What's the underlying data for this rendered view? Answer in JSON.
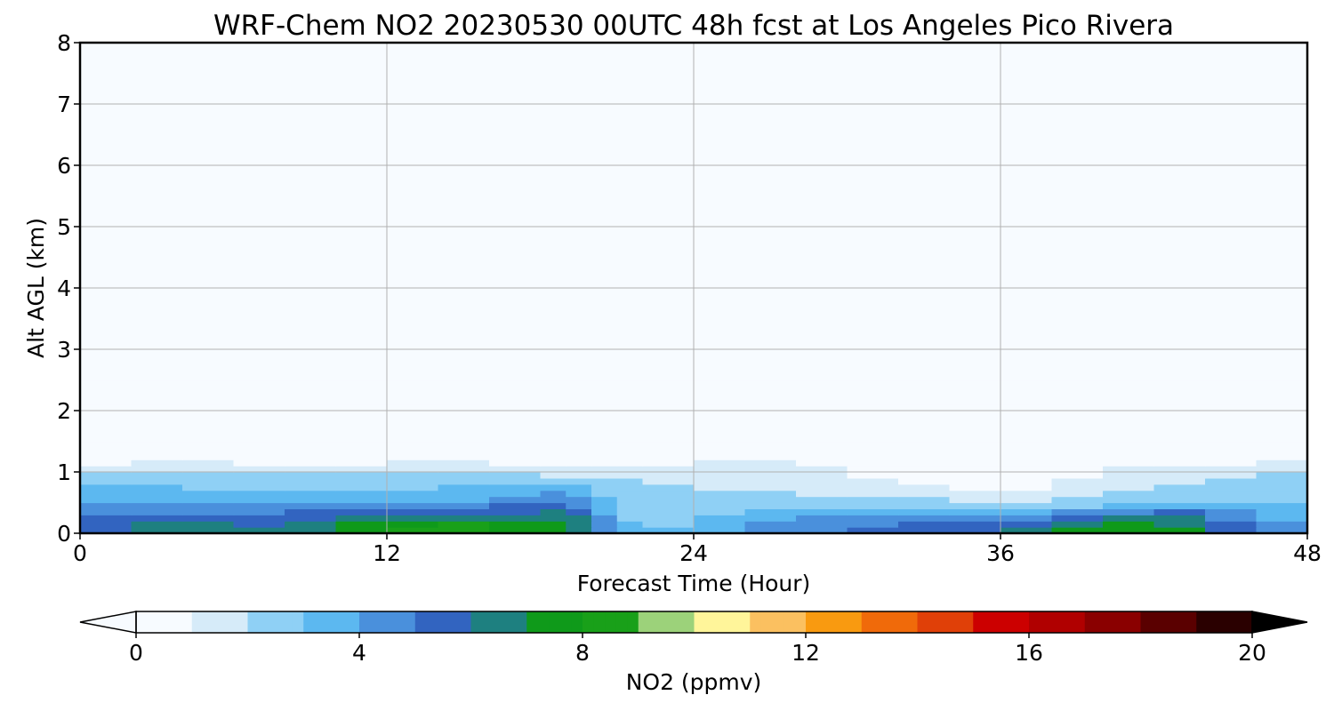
{
  "chart_data": {
    "type": "heatmap",
    "subtype": "filled-contour time-height",
    "title": "WRF-Chem NO2  20230530 00UTC 48h fcst at Los Angeles Pico Rivera",
    "xlabel": "Forecast Time (Hour)",
    "ylabel": "Alt AGL (km)",
    "xlim": [
      0,
      48
    ],
    "ylim": [
      0,
      8
    ],
    "xticks": [
      0,
      12,
      24,
      36,
      48
    ],
    "yticks": [
      0,
      1,
      2,
      3,
      4,
      5,
      6,
      7,
      8
    ],
    "grid": true,
    "colorbar": {
      "label": "NO2  (ppmv)",
      "min": 0,
      "max": 20,
      "ticks": [
        0,
        4,
        8,
        12,
        16,
        20
      ],
      "extend": "both",
      "orientation": "horizontal",
      "placement": "bottom",
      "colors": [
        {
          "v": 0,
          "c": "#f7fbff"
        },
        {
          "v": 1,
          "c": "#d6ebf9"
        },
        {
          "v": 2,
          "c": "#8fd0f5"
        },
        {
          "v": 3,
          "c": "#5cb8f0"
        },
        {
          "v": 4,
          "c": "#4a90dc"
        },
        {
          "v": 5,
          "c": "#3264c0"
        },
        {
          "v": 6,
          "c": "#1e8080"
        },
        {
          "v": 7,
          "c": "#0f9a1a"
        },
        {
          "v": 8,
          "c": "#19a019"
        },
        {
          "v": 9,
          "c": "#9cd27a"
        },
        {
          "v": 10,
          "c": "#fff59a"
        },
        {
          "v": 11,
          "c": "#fbc060"
        },
        {
          "v": 12,
          "c": "#f99a10"
        },
        {
          "v": 13,
          "c": "#f06a0a"
        },
        {
          "v": 14,
          "c": "#e04008"
        },
        {
          "v": 15,
          "c": "#cc0000"
        },
        {
          "v": 16,
          "c": "#b00000"
        },
        {
          "v": 17,
          "c": "#8a0000"
        },
        {
          "v": 18,
          "c": "#5a0000"
        },
        {
          "v": 19,
          "c": "#2a0000"
        },
        {
          "v": 20,
          "c": "#000000"
        }
      ]
    },
    "time_hours": [
      0,
      2,
      4,
      6,
      8,
      10,
      12,
      14,
      16,
      18,
      19,
      20,
      21,
      22,
      24,
      26,
      28,
      30,
      32,
      34,
      36,
      38,
      40,
      42,
      44,
      46,
      48
    ],
    "altitude_km": [
      0,
      0.1,
      0.2,
      0.3,
      0.4,
      0.5,
      0.6,
      0.7,
      0.8,
      0.9,
      1.0,
      1.1,
      1.2,
      1.3,
      1.5,
      1.7,
      1.9,
      2.1,
      2.3,
      2.5,
      8.0
    ],
    "no2_ppmv": [
      [
        5.2,
        6.6,
        7.2,
        6.8,
        6.4,
        7.3,
        7.8,
        9.8,
        8.3,
        7.7,
        7.4,
        6.0,
        3.5,
        3.0,
        3.1,
        4.1,
        4.7,
        5.1,
        5.5,
        5.9,
        6.3,
        6.9,
        7.4,
        7.7,
        7.0,
        4.6,
        3.9
      ],
      [
        5.0,
        6.3,
        7.0,
        6.6,
        6.2,
        7.1,
        7.6,
        8.9,
        8.0,
        7.5,
        7.2,
        5.8,
        3.4,
        2.9,
        3.0,
        4.0,
        4.6,
        5.0,
        5.3,
        5.6,
        6.0,
        6.6,
        7.2,
        7.6,
        6.8,
        4.5,
        3.8
      ],
      [
        4.8,
        6.0,
        6.3,
        5.5,
        5.4,
        6.4,
        6.9,
        7.8,
        7.5,
        7.2,
        7.0,
        5.5,
        3.2,
        2.8,
        2.9,
        3.8,
        4.4,
        4.7,
        4.9,
        4.8,
        4.7,
        5.2,
        6.2,
        7.0,
        6.2,
        4.3,
        3.7
      ],
      [
        4.5,
        5.5,
        5.4,
        4.9,
        5.3,
        5.4,
        5.6,
        5.8,
        6.0,
        6.5,
        6.4,
        5.1,
        3.0,
        2.7,
        2.8,
        3.5,
        4.0,
        4.2,
        4.2,
        4.2,
        4.1,
        4.4,
        5.2,
        6.0,
        5.3,
        4.0,
        3.5
      ],
      [
        4.2,
        4.8,
        4.2,
        4.5,
        4.8,
        4.9,
        5.0,
        5.1,
        5.2,
        5.8,
        5.7,
        4.6,
        2.8,
        2.5,
        2.6,
        3.0,
        3.2,
        3.1,
        3.0,
        2.8,
        2.7,
        3.0,
        3.8,
        4.6,
        4.3,
        3.6,
        3.2
      ],
      [
        3.8,
        4.2,
        3.8,
        3.7,
        3.6,
        3.6,
        3.7,
        3.9,
        4.2,
        5.0,
        5.1,
        4.0,
        2.6,
        2.4,
        2.4,
        2.6,
        2.6,
        2.5,
        2.3,
        2.1,
        2.0,
        2.2,
        2.8,
        3.2,
        3.2,
        3.0,
        2.9
      ],
      [
        3.5,
        3.6,
        3.4,
        3.3,
        3.2,
        3.2,
        3.3,
        3.5,
        3.6,
        4.3,
        4.4,
        3.4,
        2.4,
        2.2,
        2.2,
        2.3,
        2.2,
        2.0,
        1.9,
        1.7,
        1.6,
        1.8,
        2.3,
        2.6,
        2.7,
        2.7,
        2.7
      ],
      [
        3.2,
        3.2,
        3.1,
        3.0,
        2.9,
        2.9,
        3.0,
        3.2,
        3.1,
        3.6,
        3.7,
        3.0,
        2.3,
        2.1,
        2.0,
        2.0,
        1.9,
        1.7,
        1.5,
        1.2,
        1.0,
        1.3,
        1.9,
        2.2,
        2.4,
        2.5,
        2.6
      ],
      [
        3.0,
        2.9,
        2.8,
        2.7,
        2.6,
        2.6,
        2.7,
        2.9,
        2.8,
        3.0,
        3.0,
        2.6,
        2.2,
        2.0,
        1.9,
        1.8,
        1.7,
        1.4,
        1.1,
        0.6,
        0.4,
        0.8,
        1.6,
        2.0,
        2.2,
        2.3,
        2.5
      ],
      [
        2.6,
        2.6,
        2.5,
        2.4,
        2.3,
        2.3,
        2.5,
        2.8,
        2.5,
        2.4,
        2.3,
        2.2,
        2.0,
        1.8,
        1.7,
        1.6,
        1.5,
        1.1,
        0.8,
        0.3,
        0.1,
        0.5,
        1.3,
        1.7,
        1.9,
        2.1,
        2.3
      ],
      [
        2.0,
        2.0,
        1.9,
        1.8,
        1.8,
        1.8,
        2.1,
        2.5,
        2.0,
        1.5,
        1.5,
        1.5,
        1.5,
        1.5,
        1.5,
        1.4,
        1.3,
        0.8,
        0.5,
        0.2,
        0.1,
        0.4,
        1.1,
        1.5,
        1.6,
        1.8,
        2.0
      ],
      [
        1.2,
        1.3,
        1.3,
        1.2,
        1.2,
        1.2,
        1.4,
        1.8,
        1.2,
        0.8,
        0.8,
        0.8,
        0.9,
        1.0,
        1.2,
        1.2,
        1.1,
        0.9,
        0.6,
        0.3,
        0.2,
        0.5,
        1.0,
        1.2,
        1.2,
        1.3,
        1.4
      ],
      [
        0.6,
        0.7,
        0.8,
        0.7,
        0.6,
        0.6,
        0.7,
        0.9,
        0.6,
        0.4,
        0.4,
        0.4,
        0.5,
        0.7,
        0.9,
        1.0,
        1.0,
        0.9,
        0.7,
        0.5,
        0.4,
        0.7,
        0.8,
        0.7,
        0.7,
        0.7,
        0.8
      ],
      [
        0.3,
        0.3,
        0.4,
        0.4,
        0.3,
        0.3,
        0.3,
        0.4,
        0.3,
        0.2,
        0.2,
        0.2,
        0.3,
        0.4,
        0.6,
        0.7,
        0.8,
        0.8,
        0.7,
        0.6,
        0.5,
        0.7,
        0.6,
        0.5,
        0.5,
        0.5,
        0.5
      ],
      [
        0.1,
        0.1,
        0.1,
        0.1,
        0.1,
        0.1,
        0.1,
        0.1,
        0.1,
        0.1,
        0.1,
        0.1,
        0.1,
        0.2,
        0.3,
        0.4,
        0.6,
        0.7,
        0.6,
        0.5,
        0.5,
        0.5,
        0.4,
        0.3,
        0.3,
        0.3,
        0.3
      ],
      [
        0.0,
        0.0,
        0.0,
        0.0,
        0.0,
        0.0,
        0.0,
        0.0,
        0.0,
        0.0,
        0.0,
        0.0,
        0.0,
        0.1,
        0.2,
        0.2,
        0.4,
        0.6,
        0.5,
        0.4,
        0.4,
        0.4,
        0.3,
        0.2,
        0.2,
        0.2,
        0.2
      ],
      [
        0.0,
        0.0,
        0.0,
        0.0,
        0.0,
        0.0,
        0.0,
        0.0,
        0.0,
        0.0,
        0.0,
        0.0,
        0.0,
        0.0,
        0.1,
        0.1,
        0.3,
        0.5,
        0.4,
        0.3,
        0.3,
        0.3,
        0.2,
        0.1,
        0.1,
        0.1,
        0.1
      ],
      [
        0.0,
        0.0,
        0.0,
        0.0,
        0.0,
        0.0,
        0.0,
        0.0,
        0.0,
        0.0,
        0.0,
        0.0,
        0.0,
        0.0,
        0.0,
        0.0,
        0.1,
        0.2,
        0.2,
        0.2,
        0.2,
        0.2,
        0.1,
        0.0,
        0.0,
        0.0,
        0.0
      ],
      [
        0.0,
        0.0,
        0.0,
        0.0,
        0.0,
        0.0,
        0.0,
        0.0,
        0.0,
        0.0,
        0.0,
        0.0,
        0.0,
        0.0,
        0.0,
        0.0,
        0.0,
        0.0,
        0.1,
        0.1,
        0.1,
        0.1,
        0.0,
        0.0,
        0.0,
        0.0,
        0.0
      ],
      [
        0.0,
        0.0,
        0.0,
        0.0,
        0.0,
        0.0,
        0.0,
        0.0,
        0.0,
        0.0,
        0.0,
        0.0,
        0.0,
        0.0,
        0.0,
        0.0,
        0.0,
        0.0,
        0.0,
        0.0,
        0.1,
        0.1,
        0.0,
        0.0,
        0.0,
        0.0,
        0.0
      ],
      [
        0.0,
        0.0,
        0.0,
        0.0,
        0.0,
        0.0,
        0.0,
        0.0,
        0.0,
        0.0,
        0.0,
        0.0,
        0.0,
        0.0,
        0.0,
        0.0,
        0.0,
        0.0,
        0.0,
        0.0,
        0.0,
        0.0,
        0.0,
        0.0,
        0.0,
        0.0,
        0.0
      ]
    ]
  }
}
